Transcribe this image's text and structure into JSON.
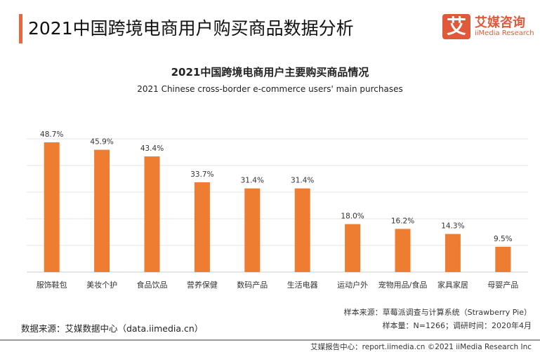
{
  "header": {
    "title": "2021中国跨境电商用户购买商品数据分析",
    "logo_mark": "艾",
    "logo_cn": "艾媒咨询",
    "logo_en": "iiMedia Research"
  },
  "chart_data": {
    "type": "bar",
    "title": "2021中国跨境电商用户主要购买商品情况",
    "subtitle": "2021 Chinese cross-border e-commerce users' main purchases",
    "categories": [
      "服饰鞋包",
      "美妆个护",
      "食品饮品",
      "营养保健",
      "数码产品",
      "生活电器",
      "运动户外",
      "宠物用品/食品",
      "家具家居",
      "母婴产品"
    ],
    "values": [
      48.7,
      45.9,
      43.4,
      33.7,
      31.4,
      31.4,
      18.0,
      16.2,
      14.3,
      9.5
    ],
    "labels": [
      "48.7%",
      "45.9%",
      "43.4%",
      "33.7%",
      "31.4%",
      "31.4%",
      "18.0%",
      "16.2%",
      "14.3%",
      "9.5%"
    ],
    "ylim": [
      0,
      50
    ],
    "grid": true,
    "bar_color": "#ee7d31"
  },
  "footer": {
    "sample_source": "样本来源：草莓派调查与计算系统（Strawberry Pie）",
    "sample_size": "样本量：N=1266；调研时间：2020年4月",
    "data_source": "数据来源：艾媒数据中心（data.iimedia.cn）",
    "copyright": "艾媒报告中心：report.iimedia.cn  ©2021  iiMedia Research Inc"
  }
}
